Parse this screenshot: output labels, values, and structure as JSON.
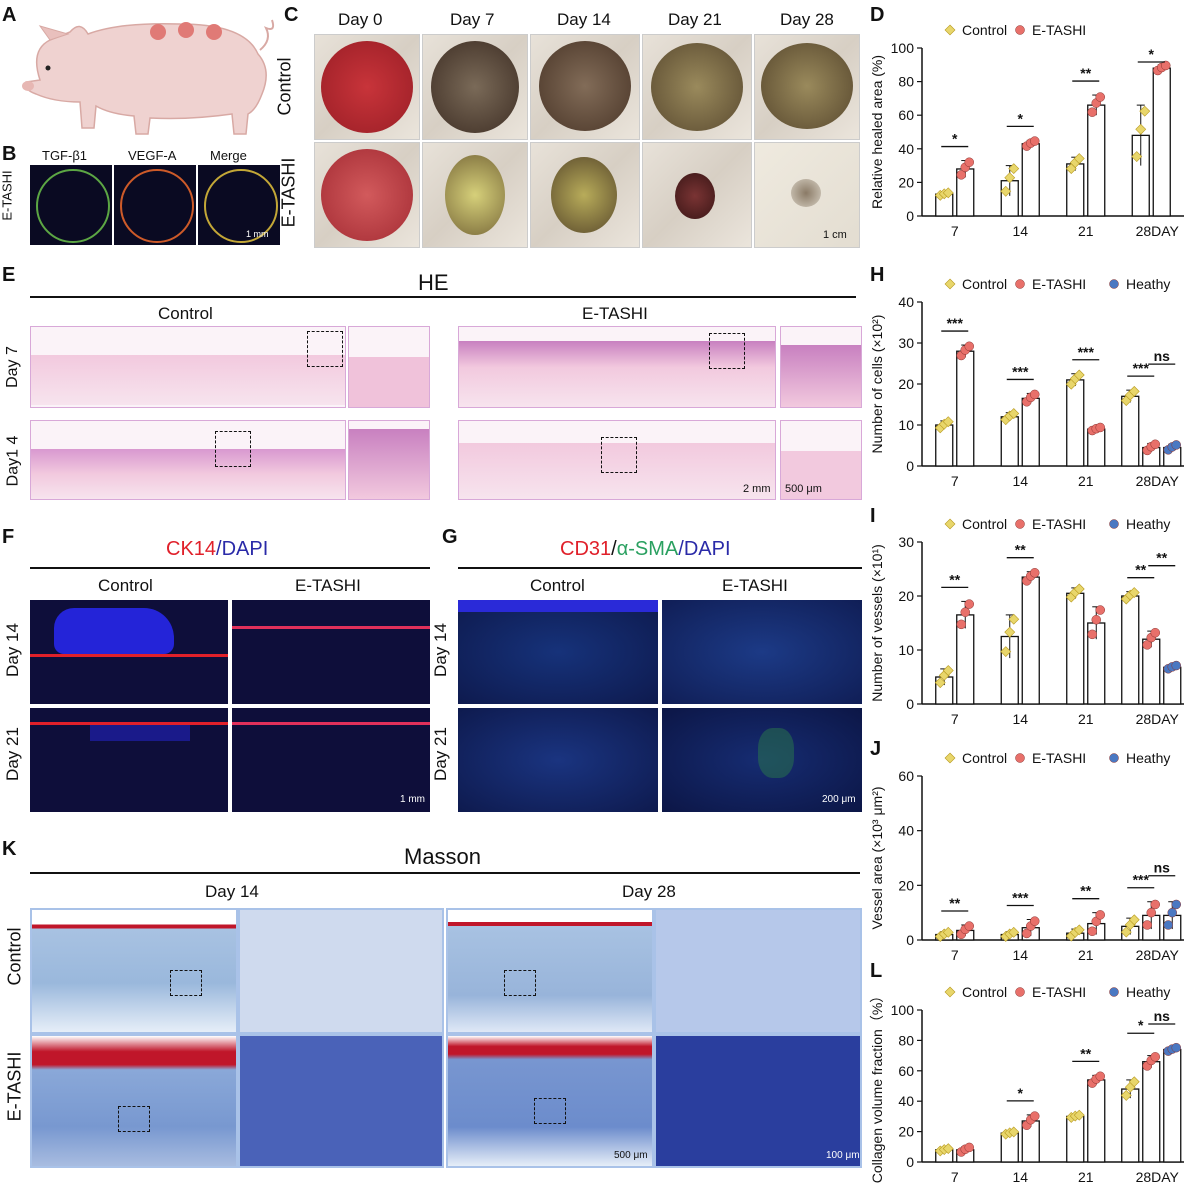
{
  "panels": {
    "A": "A",
    "B": "B",
    "C": "C",
    "D": "D",
    "E": "E",
    "F": "F",
    "G": "G",
    "H": "H",
    "I": "I",
    "J": "J",
    "K": "K",
    "L": "L"
  },
  "panel_b": {
    "row_label": "E-TASHI",
    "columns": [
      "TGF-β1",
      "VEGF-A",
      "Merge"
    ],
    "scale": "1 mm"
  },
  "panel_c": {
    "columns": [
      "Day 0",
      "Day 7",
      "Day 14",
      "Day 21",
      "Day 28"
    ],
    "rows": [
      "Control",
      "E-TASHI"
    ],
    "scale": "1 cm"
  },
  "panel_e": {
    "title": "HE",
    "groups": [
      "Control",
      "E-TASHI"
    ],
    "rows": [
      "Day 7",
      "Day1 4"
    ],
    "scale_main": "2 mm",
    "scale_zoom": "500 μm"
  },
  "panel_f": {
    "title_parts": [
      "CK14",
      "/DAPI"
    ],
    "groups": [
      "Control",
      "E-TASHI"
    ],
    "rows": [
      "Day 14",
      "Day 21"
    ],
    "scale": "1 mm"
  },
  "panel_g": {
    "title_parts": [
      "CD31",
      "/",
      "α-SMA",
      "/DAPI"
    ],
    "groups": [
      "Control",
      "E-TASHI"
    ],
    "rows": [
      "Day 14",
      "Day 21"
    ],
    "scale": "200 μm"
  },
  "panel_k": {
    "title": "Masson",
    "groups": [
      "Day 14",
      "Day 28"
    ],
    "rows": [
      "Control",
      "E-TASHI"
    ],
    "scale_main": "500 μm",
    "scale_zoom": "100 μm"
  },
  "colors": {
    "control": "#e8d66b",
    "etashi": "#e8706a",
    "heathy": "#4a78c2",
    "ck14": "#e0202a",
    "dapi": "#2a2aa8",
    "asma": "#2aa060"
  },
  "chart_data": [
    {
      "id": "D",
      "type": "bar",
      "categories": [
        "7",
        "14",
        "21",
        "28DAY"
      ],
      "series": [
        {
          "name": "Control",
          "values": [
            13,
            21,
            31,
            48
          ],
          "err": [
            1,
            9,
            4,
            18
          ]
        },
        {
          "name": "E-TASHI",
          "values": [
            28,
            43,
            66,
            88
          ],
          "err": [
            5,
            2,
            6,
            2
          ]
        }
      ],
      "ylabel": "Relative healed area (%)",
      "ylim": [
        0,
        100
      ],
      "yticks": [
        0,
        20,
        40,
        60,
        80,
        100
      ],
      "sig": [
        {
          "cat": 0,
          "text": "*"
        },
        {
          "cat": 1,
          "text": "*"
        },
        {
          "cat": 2,
          "text": "**"
        },
        {
          "cat": 3,
          "text": "*"
        }
      ]
    },
    {
      "id": "H",
      "type": "bar",
      "categories": [
        "7",
        "14",
        "21",
        "28DAY"
      ],
      "series": [
        {
          "name": "Control",
          "values": [
            10,
            12,
            21,
            17
          ],
          "err": [
            1,
            1,
            1.5,
            1.5
          ]
        },
        {
          "name": "E-TASHI",
          "values": [
            28,
            16.5,
            9,
            4.5
          ],
          "err": [
            1.5,
            1.2,
            0.5,
            1
          ]
        },
        {
          "name": "Heathy",
          "values": [
            null,
            null,
            null,
            4.5
          ],
          "err": [
            null,
            null,
            null,
            0.8
          ]
        }
      ],
      "ylabel": "Number of cells (×10²)",
      "ylim": [
        0,
        40
      ],
      "yticks": [
        0,
        10,
        20,
        30,
        40
      ],
      "sig": [
        {
          "cat": 0,
          "text": "***"
        },
        {
          "cat": 1,
          "text": "***"
        },
        {
          "cat": 2,
          "text": "***"
        },
        {
          "cat": 3,
          "text": "***"
        },
        {
          "cat": 3,
          "text": "ns",
          "pair": "etashi-heathy"
        }
      ]
    },
    {
      "id": "I",
      "type": "bar",
      "categories": [
        "7",
        "14",
        "21",
        "28DAY"
      ],
      "series": [
        {
          "name": "Control",
          "values": [
            5,
            12.5,
            20.5,
            20
          ],
          "err": [
            1.5,
            4,
            1,
            0.8
          ]
        },
        {
          "name": "E-TASHI",
          "values": [
            16.5,
            23.5,
            15,
            12
          ],
          "err": [
            2.5,
            1,
            3,
            1.5
          ]
        },
        {
          "name": "Heathy",
          "values": [
            null,
            null,
            null,
            6.8
          ],
          "err": [
            null,
            null,
            null,
            0.4
          ]
        }
      ],
      "ylabel": "Number of vessels (×10¹)",
      "ylim": [
        0,
        30
      ],
      "yticks": [
        0,
        10,
        20,
        30
      ],
      "sig": [
        {
          "cat": 0,
          "text": "**"
        },
        {
          "cat": 1,
          "text": "**"
        },
        {
          "cat": 3,
          "text": "**"
        },
        {
          "cat": 3,
          "text": "**",
          "pair": "etashi-heathy"
        }
      ]
    },
    {
      "id": "J",
      "type": "bar",
      "categories": [
        "7",
        "14",
        "21",
        "28DAY"
      ],
      "series": [
        {
          "name": "Control",
          "values": [
            2,
            2,
            2.5,
            5
          ],
          "err": [
            1,
            1,
            1.5,
            3
          ]
        },
        {
          "name": "E-TASHI",
          "values": [
            3.5,
            4.5,
            6,
            9
          ],
          "err": [
            2,
            3,
            4,
            5
          ]
        },
        {
          "name": "Heathy",
          "values": [
            null,
            null,
            null,
            9
          ],
          "err": [
            null,
            null,
            null,
            5
          ]
        }
      ],
      "ylabel": "Vessel area (×10³ μm²)",
      "ylim": [
        0,
        60
      ],
      "yticks": [
        0,
        20,
        40,
        60
      ],
      "sig": [
        {
          "cat": 0,
          "text": "**"
        },
        {
          "cat": 1,
          "text": "***"
        },
        {
          "cat": 2,
          "text": "**"
        },
        {
          "cat": 3,
          "text": "***"
        },
        {
          "cat": 3,
          "text": "ns",
          "pair": "etashi-heathy"
        }
      ]
    },
    {
      "id": "L",
      "type": "bar",
      "categories": [
        "7",
        "14",
        "21",
        "28DAY"
      ],
      "series": [
        {
          "name": "Control",
          "values": [
            8,
            19,
            30,
            48
          ],
          "err": [
            1,
            1,
            1,
            6
          ]
        },
        {
          "name": "E-TASHI",
          "values": [
            8,
            27,
            54,
            66
          ],
          "err": [
            2,
            4,
            3,
            4
          ]
        },
        {
          "name": "Heathy",
          "values": [
            null,
            null,
            null,
            74
          ],
          "err": [
            null,
            null,
            null,
            1.5
          ]
        }
      ],
      "ylabel": "Collagen volume fraction（%）",
      "ylim": [
        0,
        100
      ],
      "yticks": [
        0,
        20,
        40,
        60,
        80,
        100
      ],
      "sig": [
        {
          "cat": 1,
          "text": "*"
        },
        {
          "cat": 2,
          "text": "**"
        },
        {
          "cat": 3,
          "text": "*"
        },
        {
          "cat": 3,
          "text": "ns",
          "pair": "etashi-heathy"
        }
      ]
    }
  ]
}
